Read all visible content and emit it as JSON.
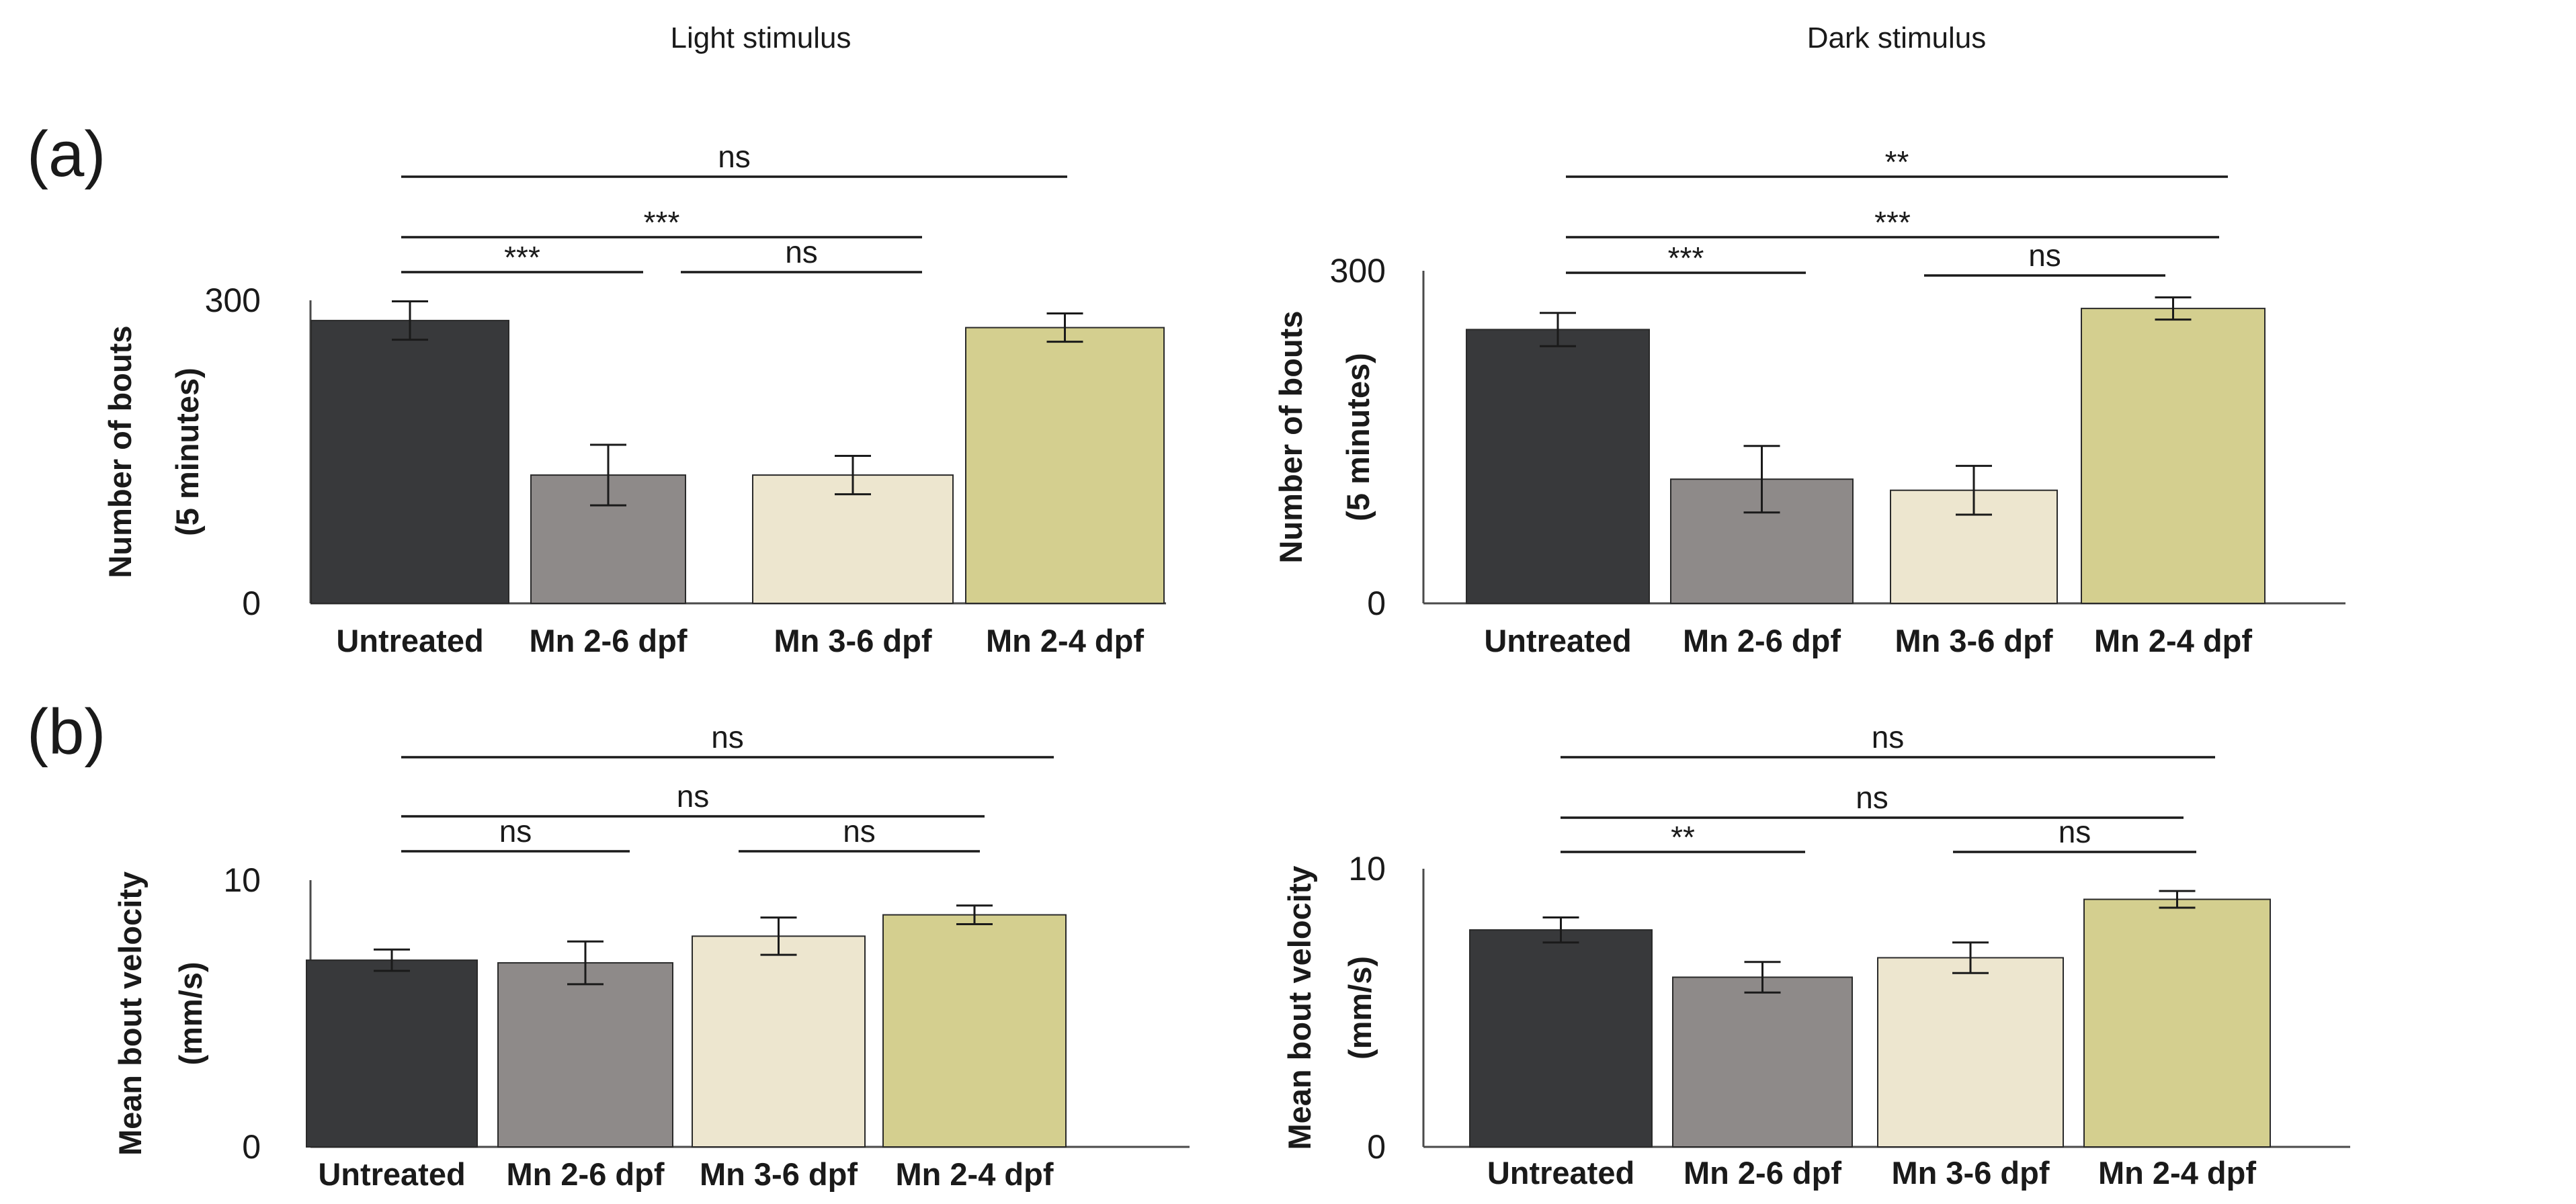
{
  "column_titles": [
    "Light stimulus",
    "Dark stimulus"
  ],
  "row_labels": [
    "(a)",
    "(b)"
  ],
  "colors": {
    "Untreated": "#38393b",
    "Mn 2-6 dpf": "#8e8a89",
    "Mn 3-6 dpf": "#ede6cf",
    "Mn 2-4 dpf": "#d4cf8f"
  },
  "chart_data": [
    {
      "type": "bar",
      "panel": "(a)",
      "title": "Light stimulus",
      "categories": [
        "Untreated",
        "Mn 2-6 dpf",
        "Mn 3-6 dpf",
        "Mn 2-4 dpf"
      ],
      "values": [
        280,
        127,
        127,
        273
      ],
      "errors": [
        19,
        30,
        19,
        14
      ],
      "ylabel": [
        "Number of bouts",
        "(5 minutes)"
      ],
      "ylim": [
        0,
        300
      ],
      "yticks": [
        "0",
        "300"
      ],
      "significance": [
        {
          "label": "ns",
          "from": 0,
          "to": 3
        },
        {
          "label": "***",
          "from": 0,
          "to": 2
        },
        {
          "label": "***",
          "from": 0,
          "to": 1
        },
        {
          "label": "ns",
          "from": 1,
          "to": 2
        }
      ]
    },
    {
      "type": "bar",
      "panel": "(a)",
      "title": "Dark stimulus",
      "categories": [
        "Untreated",
        "Mn 2-6 dpf",
        "Mn 3-6 dpf",
        "Mn 2-4 dpf"
      ],
      "values": [
        247,
        112,
        102,
        266
      ],
      "errors": [
        15,
        30,
        22,
        10
      ],
      "ylabel": [
        "Number of bouts",
        "(5 minutes)"
      ],
      "ylim": [
        0,
        300
      ],
      "yticks": [
        "0",
        "300"
      ],
      "significance": [
        {
          "label": "**",
          "from": 0,
          "to": 3
        },
        {
          "label": "***",
          "from": 0,
          "to": 3
        },
        {
          "label": "***",
          "from": 0,
          "to": 1
        },
        {
          "label": "ns",
          "from": 2,
          "to": 3
        }
      ]
    },
    {
      "type": "bar",
      "panel": "(b)",
      "title": "Light stimulus",
      "categories": [
        "Untreated",
        "Mn 2-6 dpf",
        "Mn 3-6 dpf",
        "Mn 2-4 dpf"
      ],
      "values": [
        7.0,
        6.9,
        7.9,
        8.7
      ],
      "errors": [
        0.4,
        0.8,
        0.7,
        0.35
      ],
      "ylabel": [
        "Mean bout velocity",
        "(mm/s)"
      ],
      "ylim": [
        0,
        10
      ],
      "yticks": [
        "0",
        "10"
      ],
      "significance": [
        {
          "label": "ns",
          "from": 0,
          "to": 3
        },
        {
          "label": "ns",
          "from": 0,
          "to": 3
        },
        {
          "label": "ns",
          "from": 0,
          "to": 1
        },
        {
          "label": "ns",
          "from": 2,
          "to": 3
        }
      ]
    },
    {
      "type": "bar",
      "panel": "(b)",
      "title": "Dark stimulus",
      "categories": [
        "Untreated",
        "Mn 2-6 dpf",
        "Mn 3-6 dpf",
        "Mn 2-4 dpf"
      ],
      "values": [
        7.8,
        6.1,
        6.8,
        8.9
      ],
      "errors": [
        0.45,
        0.55,
        0.55,
        0.3
      ],
      "ylabel": [
        "Mean bout velocity",
        "(mm/s)"
      ],
      "ylim": [
        0,
        10
      ],
      "yticks": [
        "0",
        "10"
      ],
      "significance": [
        {
          "label": "ns",
          "from": 0,
          "to": 3
        },
        {
          "label": "ns",
          "from": 0,
          "to": 3
        },
        {
          "label": "**",
          "from": 0,
          "to": 1
        },
        {
          "label": "ns",
          "from": 2,
          "to": 3
        }
      ]
    }
  ]
}
